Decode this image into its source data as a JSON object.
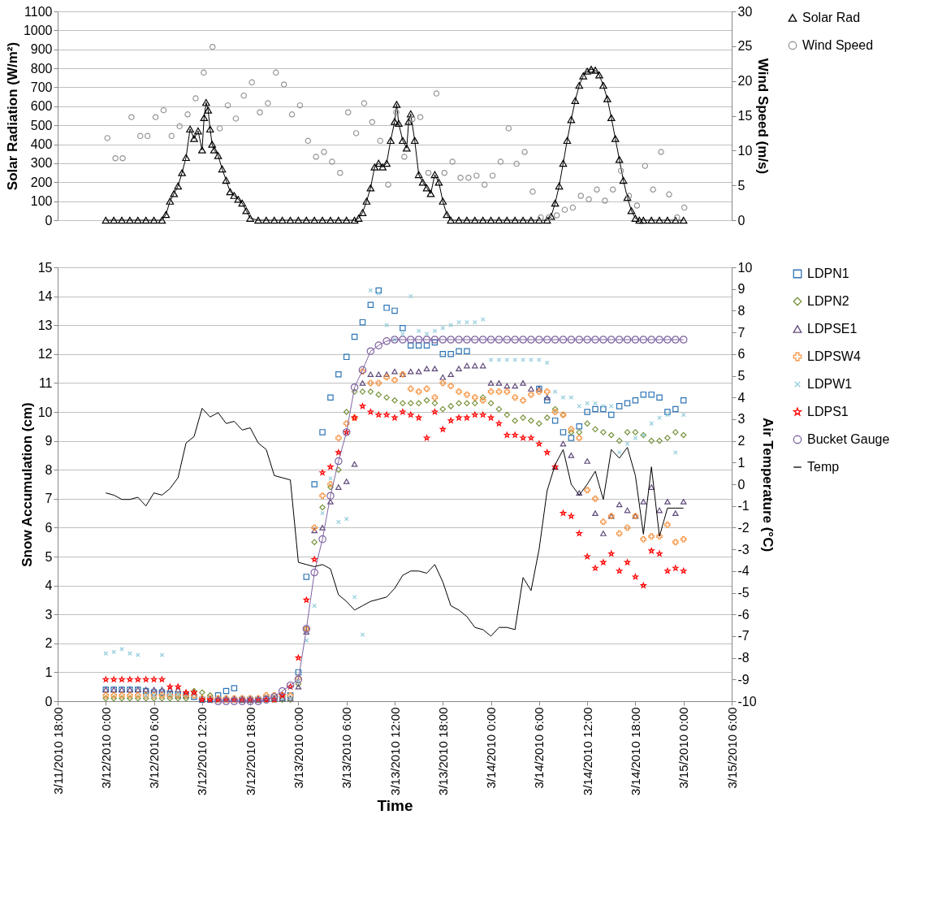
{
  "chart_data": [
    {
      "type": "line",
      "ylabel": "Solar Radiation (W/m²)",
      "y2label": "Wind Speed (m/s)",
      "xlim": [
        "2010-03-11T18:00",
        "2010-03-15T06:00"
      ],
      "ylim": [
        0,
        1100
      ],
      "yticks": [
        0,
        100,
        200,
        300,
        400,
        500,
        600,
        700,
        800,
        900,
        1000,
        1100
      ],
      "y2lim": [
        0,
        30
      ],
      "y2ticks": [
        0,
        5,
        10,
        15,
        20,
        25,
        30
      ],
      "grid": "y",
      "legend": "right",
      "tick_labels": "y",
      "series": [
        {
          "name": "Solar Rad",
          "color": "#000000",
          "type": "line",
          "marker": "triangle",
          "line_style": "solid",
          "x": [
            "2010-03-12T00:00",
            "2010-03-12T01:00",
            "2010-03-12T02:00",
            "2010-03-12T03:00",
            "2010-03-12T04:00",
            "2010-03-12T05:00",
            "2010-03-12T06:00",
            "2010-03-12T07:00",
            "2010-03-12T07:30",
            "2010-03-12T08:00",
            "2010-03-12T08:30",
            "2010-03-12T09:00",
            "2010-03-12T09:30",
            "2010-03-12T10:00",
            "2010-03-12T10:30",
            "2010-03-12T11:00",
            "2010-03-12T11:30",
            "2010-03-12T12:00",
            "2010-03-12T12:15",
            "2010-03-12T12:30",
            "2010-03-12T12:45",
            "2010-03-12T13:00",
            "2010-03-12T13:15",
            "2010-03-12T13:30",
            "2010-03-12T14:00",
            "2010-03-12T14:30",
            "2010-03-12T15:00",
            "2010-03-12T15:30",
            "2010-03-12T16:00",
            "2010-03-12T16:30",
            "2010-03-12T17:00",
            "2010-03-12T17:30",
            "2010-03-12T18:00",
            "2010-03-12T19:00",
            "2010-03-12T20:00",
            "2010-03-12T21:00",
            "2010-03-12T22:00",
            "2010-03-12T23:00",
            "2010-03-13T00:00",
            "2010-03-13T01:00",
            "2010-03-13T02:00",
            "2010-03-13T03:00",
            "2010-03-13T04:00",
            "2010-03-13T05:00",
            "2010-03-13T06:00",
            "2010-03-13T07:00",
            "2010-03-13T07:30",
            "2010-03-13T08:00",
            "2010-03-13T08:30",
            "2010-03-13T09:00",
            "2010-03-13T09:30",
            "2010-03-13T10:00",
            "2010-03-13T10:30",
            "2010-03-13T11:00",
            "2010-03-13T11:30",
            "2010-03-13T12:00",
            "2010-03-13T12:15",
            "2010-03-13T12:30",
            "2010-03-13T13:00",
            "2010-03-13T13:30",
            "2010-03-13T13:45",
            "2010-03-13T14:00",
            "2010-03-13T14:30",
            "2010-03-13T15:00",
            "2010-03-13T15:30",
            "2010-03-13T16:00",
            "2010-03-13T16:30",
            "2010-03-13T17:00",
            "2010-03-13T17:30",
            "2010-03-13T18:00",
            "2010-03-13T18:30",
            "2010-03-13T19:00",
            "2010-03-13T20:00",
            "2010-03-13T21:00",
            "2010-03-13T22:00",
            "2010-03-13T23:00",
            "2010-03-14T00:00",
            "2010-03-14T01:00",
            "2010-03-14T02:00",
            "2010-03-14T03:00",
            "2010-03-14T04:00",
            "2010-03-14T05:00",
            "2010-03-14T06:00",
            "2010-03-14T07:00",
            "2010-03-14T07:30",
            "2010-03-14T08:00",
            "2010-03-14T08:30",
            "2010-03-14T09:00",
            "2010-03-14T09:30",
            "2010-03-14T10:00",
            "2010-03-14T10:30",
            "2010-03-14T11:00",
            "2010-03-14T11:30",
            "2010-03-14T12:00",
            "2010-03-14T12:30",
            "2010-03-14T13:00",
            "2010-03-14T13:30",
            "2010-03-14T14:00",
            "2010-03-14T14:30",
            "2010-03-14T15:00",
            "2010-03-14T15:30",
            "2010-03-14T16:00",
            "2010-03-14T16:30",
            "2010-03-14T17:00",
            "2010-03-14T17:30",
            "2010-03-14T18:00",
            "2010-03-14T18:30",
            "2010-03-14T19:00",
            "2010-03-14T20:00",
            "2010-03-14T21:00",
            "2010-03-14T22:00",
            "2010-03-14T23:00",
            "2010-03-15T00:00"
          ],
          "values": [
            0,
            0,
            0,
            0,
            0,
            0,
            0,
            0,
            30,
            100,
            140,
            180,
            250,
            330,
            480,
            430,
            470,
            370,
            540,
            620,
            580,
            480,
            400,
            370,
            340,
            270,
            210,
            150,
            130,
            110,
            90,
            50,
            10,
            0,
            0,
            0,
            0,
            0,
            0,
            0,
            0,
            0,
            0,
            0,
            0,
            0,
            10,
            40,
            100,
            170,
            280,
            300,
            280,
            300,
            420,
            520,
            610,
            510,
            420,
            380,
            520,
            560,
            420,
            240,
            200,
            170,
            140,
            240,
            200,
            100,
            30,
            0,
            0,
            0,
            0,
            0,
            0,
            0,
            0,
            0,
            0,
            0,
            0,
            0,
            20,
            90,
            180,
            300,
            420,
            530,
            630,
            710,
            760,
            785,
            795,
            790,
            765,
            710,
            640,
            540,
            430,
            320,
            210,
            120,
            50,
            10,
            0,
            0,
            0,
            0,
            0,
            0,
            0
          ]
        },
        {
          "name": "Wind Speed",
          "color": "#969696",
          "type": "scatter",
          "marker": "circle",
          "axis": "y2",
          "x": [
            "2010-03-12T00:12",
            "2010-03-12T01:12",
            "2010-03-12T02:06",
            "2010-03-12T03:12",
            "2010-03-12T04:18",
            "2010-03-12T05:12",
            "2010-03-12T06:12",
            "2010-03-12T07:12",
            "2010-03-12T08:12",
            "2010-03-12T09:12",
            "2010-03-12T10:12",
            "2010-03-12T11:12",
            "2010-03-12T12:12",
            "2010-03-12T13:18",
            "2010-03-12T14:12",
            "2010-03-12T15:12",
            "2010-03-12T16:12",
            "2010-03-12T17:12",
            "2010-03-12T18:12",
            "2010-03-12T19:12",
            "2010-03-12T20:12",
            "2010-03-12T21:12",
            "2010-03-12T22:12",
            "2010-03-12T23:12",
            "2010-03-13T00:12",
            "2010-03-13T01:12",
            "2010-03-13T02:12",
            "2010-03-13T03:12",
            "2010-03-13T04:12",
            "2010-03-13T05:12",
            "2010-03-13T06:12",
            "2010-03-13T07:12",
            "2010-03-13T08:12",
            "2010-03-13T09:12",
            "2010-03-13T10:12",
            "2010-03-13T11:12",
            "2010-03-13T12:12",
            "2010-03-13T13:12",
            "2010-03-13T14:12",
            "2010-03-13T15:12",
            "2010-03-13T16:12",
            "2010-03-13T17:12",
            "2010-03-13T18:12",
            "2010-03-13T19:12",
            "2010-03-13T20:12",
            "2010-03-13T21:12",
            "2010-03-13T22:12",
            "2010-03-13T23:12",
            "2010-03-14T00:12",
            "2010-03-14T01:12",
            "2010-03-14T02:12",
            "2010-03-14T03:12",
            "2010-03-14T04:12",
            "2010-03-14T05:12",
            "2010-03-14T06:12",
            "2010-03-14T07:12",
            "2010-03-14T08:12",
            "2010-03-14T09:12",
            "2010-03-14T10:12",
            "2010-03-14T11:12",
            "2010-03-14T12:12",
            "2010-03-14T13:12",
            "2010-03-14T14:12",
            "2010-03-14T15:12",
            "2010-03-14T16:12",
            "2010-03-14T17:12",
            "2010-03-14T18:12",
            "2010-03-14T19:12",
            "2010-03-14T20:12",
            "2010-03-14T21:12",
            "2010-03-14T22:12",
            "2010-03-14T23:12",
            "2010-03-15T00:06"
          ],
          "values": [
            11.8,
            8.9,
            8.9,
            14.8,
            12.1,
            12.1,
            14.8,
            15.8,
            12.1,
            13.5,
            15.2,
            17.5,
            21.2,
            24.9,
            13.2,
            16.5,
            14.6,
            17.9,
            19.8,
            15.5,
            16.8,
            21.2,
            19.5,
            15.2,
            16.5,
            11.4,
            9.1,
            9.8,
            8.4,
            6.8,
            15.5,
            12.5,
            16.8,
            14.1,
            11.4,
            5.1,
            15.5,
            9.1,
            14.5,
            14.8,
            6.8,
            18.2,
            6.8,
            8.4,
            6.1,
            6.1,
            6.4,
            5.1,
            6.4,
            8.4,
            13.2,
            8.1,
            9.8,
            4.1,
            0.4,
            0.4,
            0.7,
            1.5,
            1.8,
            3.5,
            3.0,
            4.4,
            2.8,
            4.4,
            7.1,
            3.5,
            2.1,
            7.8,
            4.4,
            9.8,
            3.7,
            0.4,
            1.8
          ]
        }
      ]
    },
    {
      "type": "scatter",
      "xlabel": "Time",
      "ylabel": "Snow Accumulation (cm)",
      "y2label": "Air Temperature (°C)",
      "xlim": [
        "2010-03-11T18:00",
        "2010-03-15T06:00"
      ],
      "xticks": [
        {
          "value": "2010-03-11T18:00",
          "label": "3/11/2010 18:00"
        },
        {
          "value": "2010-03-12T00:00",
          "label": "3/12/2010 0:00"
        },
        {
          "value": "2010-03-12T06:00",
          "label": "3/12/2010 6:00"
        },
        {
          "value": "2010-03-12T12:00",
          "label": "3/12/2010 12:00"
        },
        {
          "value": "2010-03-12T18:00",
          "label": "3/12/2010 18:00"
        },
        {
          "value": "2010-03-13T00:00",
          "label": "3/13/2010 0:00"
        },
        {
          "value": "2010-03-13T06:00",
          "label": "3/13/2010 6:00"
        },
        {
          "value": "2010-03-13T12:00",
          "label": "3/13/2010 12:00"
        },
        {
          "value": "2010-03-13T18:00",
          "label": "3/13/2010 18:00"
        },
        {
          "value": "2010-03-14T00:00",
          "label": "3/14/2010 0:00"
        },
        {
          "value": "2010-03-14T06:00",
          "label": "3/14/2010 6:00"
        },
        {
          "value": "2010-03-14T12:00",
          "label": "3/14/2010 12:00"
        },
        {
          "value": "2010-03-14T18:00",
          "label": "3/14/2010 18:00"
        },
        {
          "value": "2010-03-15T00:00",
          "label": "3/15/2010 0:00"
        },
        {
          "value": "2010-03-15T06:00",
          "label": "3/15/2010 6:00"
        }
      ],
      "ylim": [
        0,
        15
      ],
      "yticks": [
        0,
        1,
        2,
        3,
        4,
        5,
        6,
        7,
        8,
        9,
        10,
        11,
        12,
        13,
        14,
        15
      ],
      "y2lim": [
        -10,
        10
      ],
      "y2ticks": [
        -10,
        -9,
        -8,
        -7,
        -6,
        -5,
        -4,
        -3,
        -2,
        -1,
        0,
        1,
        2,
        3,
        4,
        5,
        6,
        7,
        8,
        9,
        10
      ],
      "grid": "y",
      "legend": "right",
      "x": [
        "2010-03-12T00:00",
        "2010-03-12T01:00",
        "2010-03-12T02:00",
        "2010-03-12T03:00",
        "2010-03-12T04:00",
        "2010-03-12T05:00",
        "2010-03-12T06:00",
        "2010-03-12T07:00",
        "2010-03-12T08:00",
        "2010-03-12T09:00",
        "2010-03-12T10:00",
        "2010-03-12T11:00",
        "2010-03-12T12:00",
        "2010-03-12T13:00",
        "2010-03-12T14:00",
        "2010-03-12T15:00",
        "2010-03-12T16:00",
        "2010-03-12T17:00",
        "2010-03-12T18:00",
        "2010-03-12T19:00",
        "2010-03-12T20:00",
        "2010-03-12T21:00",
        "2010-03-12T22:00",
        "2010-03-12T23:00",
        "2010-03-13T00:00",
        "2010-03-13T01:00",
        "2010-03-13T02:00",
        "2010-03-13T03:00",
        "2010-03-13T04:00",
        "2010-03-13T05:00",
        "2010-03-13T06:00",
        "2010-03-13T07:00",
        "2010-03-13T08:00",
        "2010-03-13T09:00",
        "2010-03-13T10:00",
        "2010-03-13T11:00",
        "2010-03-13T12:00",
        "2010-03-13T13:00",
        "2010-03-13T14:00",
        "2010-03-13T15:00",
        "2010-03-13T16:00",
        "2010-03-13T17:00",
        "2010-03-13T18:00",
        "2010-03-13T19:00",
        "2010-03-13T20:00",
        "2010-03-13T21:00",
        "2010-03-13T22:00",
        "2010-03-13T23:00",
        "2010-03-14T00:00",
        "2010-03-14T01:00",
        "2010-03-14T02:00",
        "2010-03-14T03:00",
        "2010-03-14T04:00",
        "2010-03-14T05:00",
        "2010-03-14T06:00",
        "2010-03-14T07:00",
        "2010-03-14T08:00",
        "2010-03-14T09:00",
        "2010-03-14T10:00",
        "2010-03-14T11:00",
        "2010-03-14T12:00",
        "2010-03-14T13:00",
        "2010-03-14T14:00",
        "2010-03-14T15:00",
        "2010-03-14T16:00",
        "2010-03-14T17:00",
        "2010-03-14T18:00",
        "2010-03-14T19:00",
        "2010-03-14T20:00",
        "2010-03-14T21:00",
        "2010-03-14T22:00",
        "2010-03-14T23:00",
        "2010-03-15T00:00"
      ],
      "series": [
        {
          "name": "LDPN1",
          "color": "#2e75b6",
          "marker": "square",
          "values": [
            0.4,
            0.4,
            0.4,
            0.4,
            0.4,
            0.35,
            0.3,
            0.3,
            0.25,
            0.2,
            0.2,
            0.15,
            0.05,
            0.05,
            0.2,
            0.35,
            0.45,
            0.05,
            0.05,
            0.05,
            0.1,
            0.1,
            0.1,
            0.2,
            1.0,
            4.3,
            7.5,
            9.3,
            10.5,
            11.3,
            11.9,
            12.6,
            13.1,
            13.7,
            14.2,
            13.6,
            13.5,
            12.9,
            12.3,
            12.3,
            12.3,
            12.4,
            12.0,
            12.0,
            12.1,
            12.1,
            null,
            null,
            null,
            null,
            null,
            null,
            null,
            null,
            10.8,
            10.4,
            9.7,
            9.3,
            9.1,
            9.5,
            10.0,
            10.1,
            10.1,
            9.9,
            10.2,
            10.3,
            10.4,
            10.6,
            10.6,
            10.5,
            10.0,
            10.1,
            10.4
          ]
        },
        {
          "name": "LDPN2",
          "color": "#77933c",
          "marker": "diamond",
          "values": [
            0.1,
            0.1,
            0.1,
            0.1,
            0.1,
            0.1,
            0.1,
            0.1,
            0.1,
            0.1,
            0.1,
            0.35,
            0.3,
            0.2,
            0.05,
            0.05,
            0.05,
            0.05,
            0.05,
            0.05,
            0.05,
            0.05,
            0.05,
            0.05,
            0.6,
            2.5,
            5.5,
            6.7,
            7.4,
            8.0,
            10.0,
            10.7,
            10.7,
            10.7,
            10.6,
            10.5,
            10.4,
            10.3,
            10.3,
            10.3,
            10.4,
            10.3,
            10.1,
            10.2,
            10.3,
            10.3,
            10.3,
            10.5,
            10.3,
            10.1,
            9.9,
            9.7,
            9.8,
            9.7,
            9.6,
            9.8,
            10.1,
            9.9,
            9.3,
            9.3,
            9.6,
            9.4,
            9.3,
            9.2,
            9.0,
            9.3,
            9.3,
            9.2,
            9.0,
            9.0,
            9.1,
            9.3,
            9.2
          ]
        },
        {
          "name": "LDPSE1",
          "color": "#604a7b",
          "marker": "triangle",
          "values": [
            0.4,
            0.4,
            0.4,
            0.4,
            0.4,
            0.4,
            0.4,
            0.4,
            0.4,
            0.4,
            0.3,
            0.3,
            0.1,
            0.1,
            0.1,
            0.1,
            0.1,
            0.1,
            0.1,
            0.1,
            0.1,
            0.1,
            0.1,
            0.1,
            0.5,
            2.4,
            5.9,
            6.0,
            6.9,
            7.4,
            7.6,
            8.2,
            11.0,
            11.3,
            11.3,
            11.3,
            11.4,
            11.3,
            11.4,
            11.4,
            11.5,
            11.5,
            11.2,
            11.3,
            11.5,
            11.6,
            11.6,
            11.6,
            11.0,
            11.0,
            10.9,
            10.9,
            11.0,
            10.8,
            10.8,
            10.5,
            8.1,
            8.9,
            8.5,
            7.2,
            8.3,
            6.5,
            5.8,
            6.4,
            6.8,
            6.6,
            6.4,
            6.9,
            7.4,
            6.6,
            6.9,
            6.5,
            6.9
          ]
        },
        {
          "name": "LDPSW4",
          "color": "#f79646",
          "marker": "cross",
          "values": [
            0.2,
            0.2,
            0.2,
            0.2,
            0.2,
            0.2,
            0.2,
            0.2,
            0.2,
            0.2,
            0.2,
            0.2,
            0.1,
            0.1,
            0.1,
            0.1,
            0.1,
            0.1,
            0.1,
            0.1,
            0.2,
            0.2,
            0.2,
            0.2,
            0.8,
            2.5,
            6.0,
            7.1,
            7.5,
            9.1,
            9.6,
            9.8,
            11.4,
            11.0,
            11.0,
            11.2,
            11.1,
            11.3,
            10.8,
            10.7,
            10.8,
            10.5,
            11.0,
            10.9,
            10.7,
            10.6,
            10.5,
            10.4,
            10.7,
            10.7,
            10.7,
            10.5,
            10.4,
            10.6,
            10.7,
            10.7,
            10.0,
            9.9,
            9.4,
            9.1,
            7.3,
            7.0,
            6.2,
            6.4,
            5.8,
            6.0,
            6.4,
            5.6,
            5.7,
            5.7,
            6.1,
            5.5,
            5.6
          ]
        },
        {
          "name": "LDPW1",
          "color": "#93cddd",
          "marker": "x",
          "values": [
            1.65,
            1.7,
            1.8,
            1.65,
            1.6,
            0.2,
            0.2,
            1.6,
            0.25,
            0.25,
            0.25,
            0.25,
            0.1,
            0.1,
            0.1,
            0.1,
            0.1,
            0.1,
            0.1,
            0.1,
            0.1,
            0.1,
            0.1,
            0.1,
            0.7,
            2.1,
            3.3,
            6.5,
            7.7,
            6.2,
            6.3,
            3.6,
            2.3,
            14.2,
            14.1,
            13.0,
            12.5,
            12.7,
            14.0,
            12.8,
            12.7,
            12.8,
            12.9,
            13.0,
            13.1,
            13.1,
            13.1,
            13.2,
            11.8,
            11.8,
            11.8,
            11.8,
            11.8,
            11.8,
            11.8,
            11.7,
            10.7,
            10.5,
            10.5,
            10.2,
            10.3,
            10.3,
            10.2,
            10.2,
            8.6,
            8.9,
            9.1,
            9.2,
            9.6,
            9.8,
            9.9,
            8.6,
            9.9
          ]
        },
        {
          "name": "LDPS1",
          "color": "#ff0000",
          "marker": "star",
          "values": [
            0.75,
            0.75,
            0.75,
            0.75,
            0.75,
            0.75,
            0.75,
            0.75,
            0.5,
            0.5,
            0.3,
            0.3,
            0.05,
            0.05,
            0.05,
            0.05,
            0.05,
            0.05,
            0.05,
            0.05,
            0.05,
            0.05,
            0.2,
            0.5,
            1.5,
            3.5,
            4.9,
            7.9,
            8.1,
            8.6,
            9.3,
            9.8,
            10.2,
            10.0,
            9.9,
            9.9,
            9.8,
            10.0,
            9.9,
            9.8,
            9.1,
            10.0,
            9.4,
            9.7,
            9.8,
            9.8,
            9.9,
            9.9,
            9.8,
            9.6,
            9.2,
            9.2,
            9.1,
            9.1,
            8.9,
            8.6,
            8.1,
            6.5,
            6.4,
            5.8,
            5.0,
            4.6,
            4.8,
            5.1,
            4.5,
            4.8,
            4.3,
            4.0,
            5.2,
            5.1,
            4.5,
            4.6,
            4.5
          ]
        },
        {
          "name": "Bucket Gauge",
          "color": "#8064a2",
          "type": "line",
          "marker": "circle",
          "line_style": "solid",
          "values": [
            null,
            null,
            null,
            null,
            null,
            null,
            null,
            null,
            null,
            null,
            null,
            null,
            null,
            null,
            0,
            0,
            0,
            0,
            0,
            0,
            0.05,
            0.15,
            0.35,
            0.55,
            0.75,
            2.5,
            4.45,
            5.6,
            7.1,
            8.3,
            9.3,
            10.85,
            11.45,
            12.1,
            12.3,
            12.45,
            12.5,
            12.5,
            12.5,
            12.5,
            12.5,
            12.5,
            12.5,
            12.5,
            12.5,
            12.5,
            12.5,
            12.5,
            12.5,
            12.5,
            12.5,
            12.5,
            12.5,
            12.5,
            12.5,
            12.5,
            12.5,
            12.5,
            12.5,
            12.5,
            12.5,
            12.5,
            12.5,
            12.5,
            12.5,
            12.5,
            12.5,
            12.5,
            12.5,
            12.5,
            12.5,
            12.5,
            12.5
          ]
        },
        {
          "name": "Temp",
          "color": "#000000",
          "type": "line",
          "marker": "none",
          "line_style": "solid",
          "axis": "y2",
          "values": [
            -0.4,
            -0.5,
            -0.7,
            -0.7,
            -0.6,
            -1.0,
            -0.4,
            -0.5,
            -0.2,
            0.3,
            1.9,
            2.2,
            3.5,
            3.1,
            3.3,
            2.8,
            2.9,
            2.5,
            2.6,
            1.9,
            1.6,
            0.4,
            0.3,
            0.2,
            -3.6,
            -3.7,
            -3.8,
            -3.7,
            -3.9,
            -5.1,
            -5.4,
            -5.8,
            -5.6,
            -5.4,
            -5.3,
            -5.2,
            -4.8,
            -4.2,
            -4.0,
            -4.0,
            -4.1,
            -3.7,
            -4.5,
            -5.6,
            -5.8,
            -6.1,
            -6.6,
            -6.7,
            -7.0,
            -6.6,
            -6.6,
            -6.7,
            -4.3,
            -4.9,
            -3.0,
            -0.3,
            0.9,
            1.6,
            0.0,
            -0.5,
            0.0,
            0.6,
            -0.7,
            1.6,
            1.2,
            1.7,
            0.4,
            -2.3,
            0.8,
            -2.4,
            -1.1,
            -1.1,
            -1.1
          ]
        }
      ]
    }
  ]
}
